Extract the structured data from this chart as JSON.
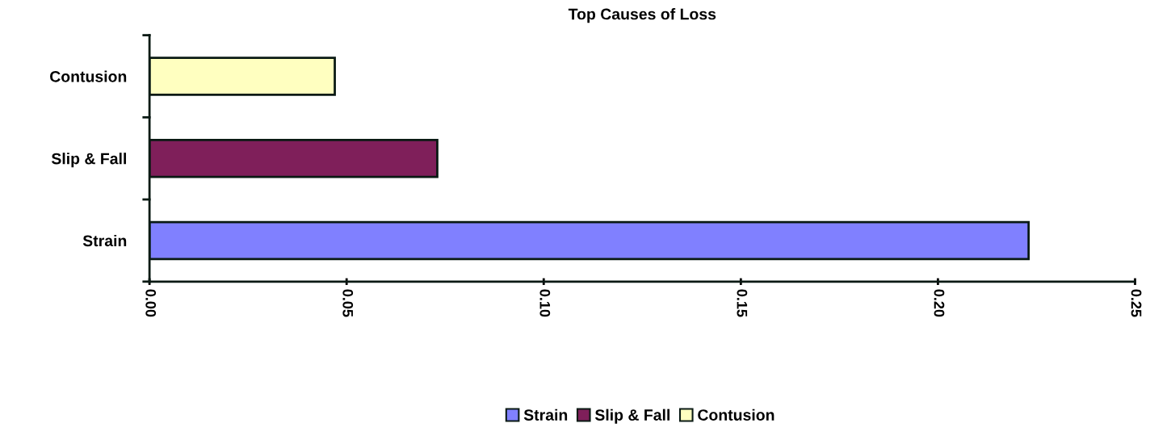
{
  "chart_data": {
    "type": "bar",
    "orientation": "horizontal",
    "title": "Top Causes of Loss",
    "categories": [
      "Contusion",
      "Slip & Fall",
      "Strain"
    ],
    "series": [
      {
        "name": "Strain",
        "color": "#8080ff",
        "values": [
          null,
          null,
          0.223
        ]
      },
      {
        "name": "Slip & Fall",
        "color": "#7f1f5a",
        "values": [
          null,
          0.073,
          null
        ]
      },
      {
        "name": "Contusion",
        "color": "#ffffc0",
        "values": [
          0.047,
          null,
          null
        ]
      }
    ],
    "xlim": [
      0,
      0.25
    ],
    "xticks": [
      {
        "value": 0,
        "label": "0.00"
      },
      {
        "value": 0.05,
        "label": "0.05"
      },
      {
        "value": 0.1,
        "label": "0.10"
      },
      {
        "value": 0.15,
        "label": "0.15"
      },
      {
        "value": 0.2,
        "label": "0.20"
      },
      {
        "value": 0.25,
        "label": "0.25"
      }
    ],
    "grid": false,
    "legend": "bottom"
  }
}
